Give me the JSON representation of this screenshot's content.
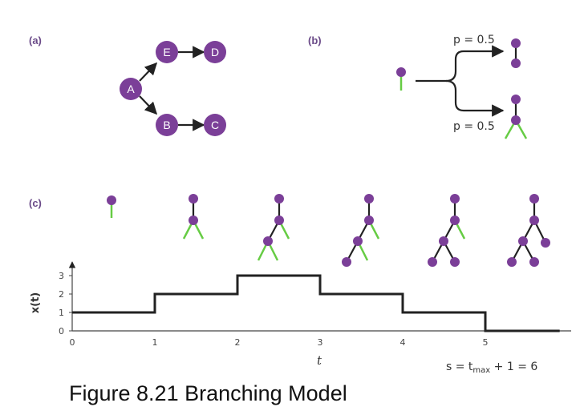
{
  "colors": {
    "node": "#7b3f98",
    "active_leaf": "#66cc44",
    "edge": "#222222",
    "step_line": "#222222"
  },
  "panels": {
    "a_label": "(a)",
    "b_label": "(b)",
    "c_label": "(c)"
  },
  "graph_a": {
    "nodes": [
      "A",
      "E",
      "D",
      "B",
      "C"
    ]
  },
  "branching_b": {
    "top_prob": "p = 0.5",
    "bottom_prob": "p = 0.5"
  },
  "plot_c": {
    "ylabel": "x(t)",
    "xlabel": "t",
    "y_ticks": [
      "0",
      "1",
      "2",
      "3"
    ],
    "x_ticks": [
      "0",
      "1",
      "2",
      "3",
      "4",
      "5"
    ],
    "steps": [
      {
        "from": 0,
        "to": 1,
        "value": 1
      },
      {
        "from": 1,
        "to": 2,
        "value": 2
      },
      {
        "from": 2,
        "to": 3,
        "value": 3
      },
      {
        "from": 3,
        "to": 4,
        "value": 2
      },
      {
        "from": 4,
        "to": 5,
        "value": 1
      },
      {
        "from": 5,
        "to": 5.9,
        "value": 0
      }
    ],
    "formula": "s =  t",
    "formula_sub": "max",
    "formula_tail": " + 1 = 6"
  },
  "caption": "Figure 8.21 Branching Model"
}
